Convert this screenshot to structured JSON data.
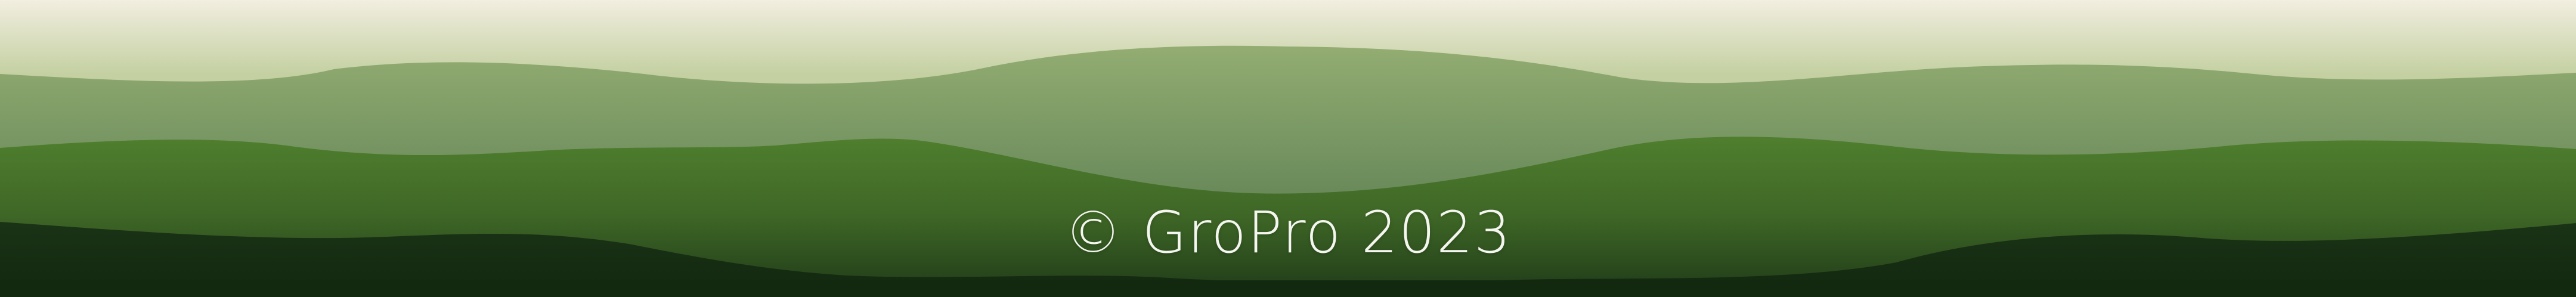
{
  "footer": {
    "copyright_text": "© GroPro 2023"
  },
  "colors": {
    "sky_top": "#f2eee0",
    "sky_bottom": "#c4d0a2",
    "hill_far": "#8aa66c",
    "hill_far_shade": "#5f8055",
    "hill_mid": "#4c7a2c",
    "hill_mid_shade": "#2e4f20",
    "hill_near": "#17301a",
    "ground": "#13290f",
    "text": "#f4f6ef"
  }
}
